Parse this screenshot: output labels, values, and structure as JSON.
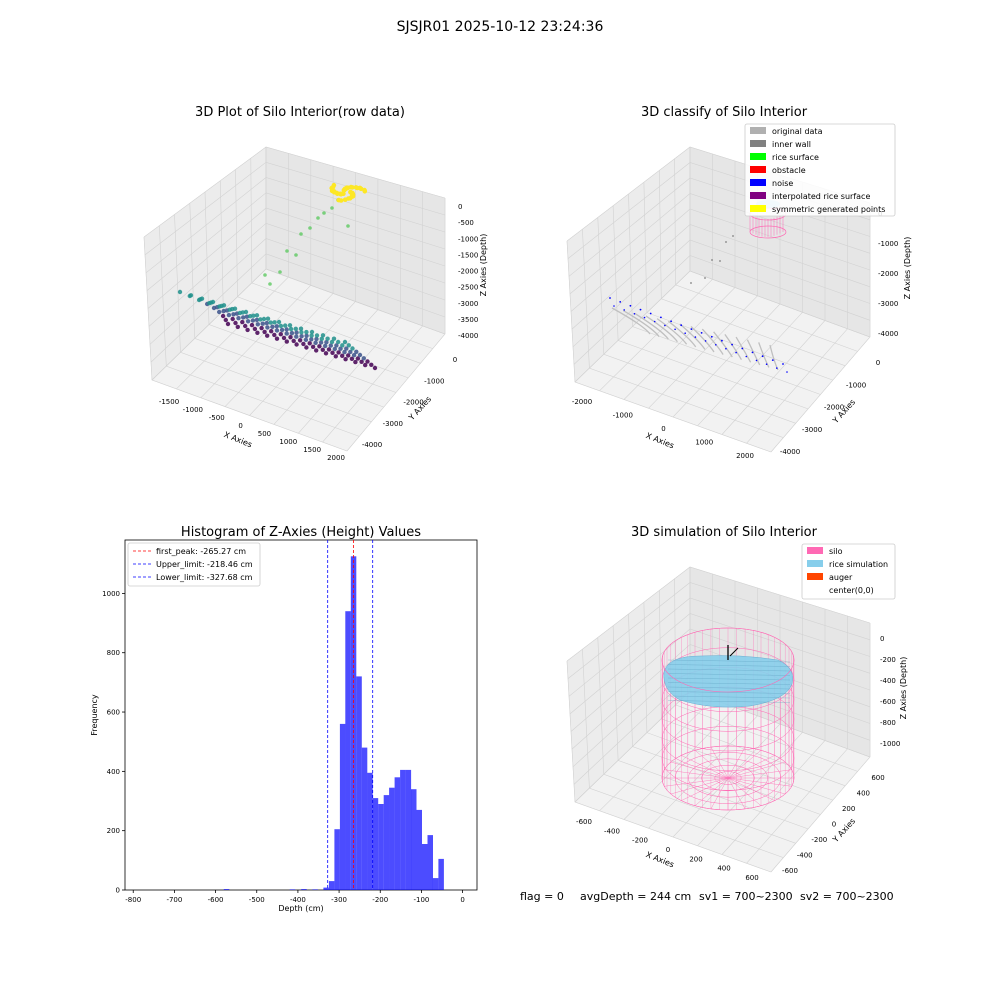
{
  "suptitle": "SJSJR01 2025-10-12 23:24:36",
  "footer": {
    "flag": "flag = 0",
    "avg": "avgDepth = 244 cm",
    "sv1": "sv1 = 700~2300",
    "sv2": "sv2 = 700~2300"
  },
  "chart_data": [
    {
      "type": "scatter",
      "title": "3D Plot of Silo Interior(row data)",
      "xlabel": "X Axies",
      "ylabel": "Y Axies",
      "zlabel": "Z Axies (Depth)",
      "x_ticks": [
        "-1500",
        "-1000",
        "-500",
        "0",
        "500",
        "1000",
        "1500",
        "2000"
      ],
      "y_ticks": [
        "0",
        "-1000",
        "-2000",
        "-3000",
        "-4000"
      ],
      "z_ticks": [
        "0",
        "-500",
        "-1000",
        "-1500",
        "-2000",
        "-2500",
        "-3000",
        "-3500",
        "-4000"
      ],
      "colormap": [
        "#440154",
        "#3b528b",
        "#21918c",
        "#5ec962",
        "#fde725"
      ]
    },
    {
      "type": "scatter",
      "title": "3D classify of Silo Interior",
      "xlabel": "X Axies",
      "ylabel": "Y Axies",
      "zlabel": "Z Axies (Depth)",
      "x_ticks": [
        "-2000",
        "-1000",
        "0",
        "1000",
        "2000"
      ],
      "y_ticks": [
        "0",
        "-1000",
        "-2000",
        "-3000",
        "-4000"
      ],
      "z_ticks": [
        "0",
        "-1000",
        "-2000",
        "-3000",
        "-4000"
      ],
      "legend": [
        {
          "label": "original data",
          "color": "#b0b0b0"
        },
        {
          "label": "inner wall",
          "color": "#808080"
        },
        {
          "label": "rice surface",
          "color": "#00ff00"
        },
        {
          "label": "obstacle",
          "color": "#ff0000"
        },
        {
          "label": "noise",
          "color": "#0000ff"
        },
        {
          "label": "interpolated rice surface",
          "color": "#800080"
        },
        {
          "label": "symmetric generated points",
          "color": "#ffff00"
        }
      ],
      "legend_position": "top-right"
    },
    {
      "type": "bar",
      "title": "Histogram of Z-Axies (Height) Values",
      "xlabel": "Depth (cm)",
      "ylabel": "Frequency",
      "xlim": [
        -820,
        35
      ],
      "ylim": [
        0,
        1180
      ],
      "x_ticks": [
        -800,
        -700,
        -600,
        -500,
        -400,
        -300,
        -200,
        -100,
        0
      ],
      "y_ticks": [
        0,
        200,
        400,
        600,
        800,
        1000
      ],
      "bin_width": 13.3,
      "bins": [
        {
          "x": -580,
          "y": 3
        },
        {
          "x": -420,
          "y": 2
        },
        {
          "x": -392,
          "y": 3
        },
        {
          "x": -365,
          "y": 2
        },
        {
          "x": -338,
          "y": 8
        },
        {
          "x": -324.7,
          "y": 30
        },
        {
          "x": -311.4,
          "y": 205
        },
        {
          "x": -298.1,
          "y": 560
        },
        {
          "x": -284.8,
          "y": 940
        },
        {
          "x": -271.5,
          "y": 1125
        },
        {
          "x": -258.2,
          "y": 720
        },
        {
          "x": -244.9,
          "y": 480
        },
        {
          "x": -231.6,
          "y": 395
        },
        {
          "x": -218.3,
          "y": 310
        },
        {
          "x": -205,
          "y": 290
        },
        {
          "x": -191.7,
          "y": 320
        },
        {
          "x": -178.4,
          "y": 345
        },
        {
          "x": -165.1,
          "y": 380
        },
        {
          "x": -151.8,
          "y": 405
        },
        {
          "x": -138.5,
          "y": 405
        },
        {
          "x": -125.2,
          "y": 340
        },
        {
          "x": -111.9,
          "y": 270
        },
        {
          "x": -98.6,
          "y": 155
        },
        {
          "x": -85.3,
          "y": 185
        },
        {
          "x": -72,
          "y": 40
        },
        {
          "x": -58.7,
          "y": 105
        }
      ],
      "bar_color": "#0000ff",
      "lines": [
        {
          "label": "first_peak: -265.27 cm",
          "x": -265.27,
          "color": "#ff0000"
        },
        {
          "label": "Upper_limit: -218.46 cm",
          "x": -218.46,
          "color": "#0000ff"
        },
        {
          "label": "Lower_limit: -327.68 cm",
          "x": -327.68,
          "color": "#0000ff"
        }
      ],
      "legend_position": "top-left"
    },
    {
      "type": "scatter",
      "title": "3D simulation of Silo Interior",
      "xlabel": "X Axies",
      "ylabel": "Y Axies",
      "zlabel": "Z Axies (Depth)",
      "x_ticks": [
        "-600",
        "-400",
        "-200",
        "0",
        "200",
        "400",
        "600"
      ],
      "y_ticks": [
        "600",
        "400",
        "200",
        "0",
        "-200",
        "-400",
        "-600"
      ],
      "z_ticks": [
        "0",
        "-200",
        "-400",
        "-600",
        "-800",
        "-1000"
      ],
      "legend": [
        {
          "label": "silo",
          "color": "#ff69b4"
        },
        {
          "label": "rice simulation",
          "color": "#87ceeb"
        },
        {
          "label": "auger",
          "color": "#ff4500"
        },
        {
          "label": "center(0,0)",
          "color": ""
        }
      ],
      "legend_position": "top-right"
    }
  ]
}
